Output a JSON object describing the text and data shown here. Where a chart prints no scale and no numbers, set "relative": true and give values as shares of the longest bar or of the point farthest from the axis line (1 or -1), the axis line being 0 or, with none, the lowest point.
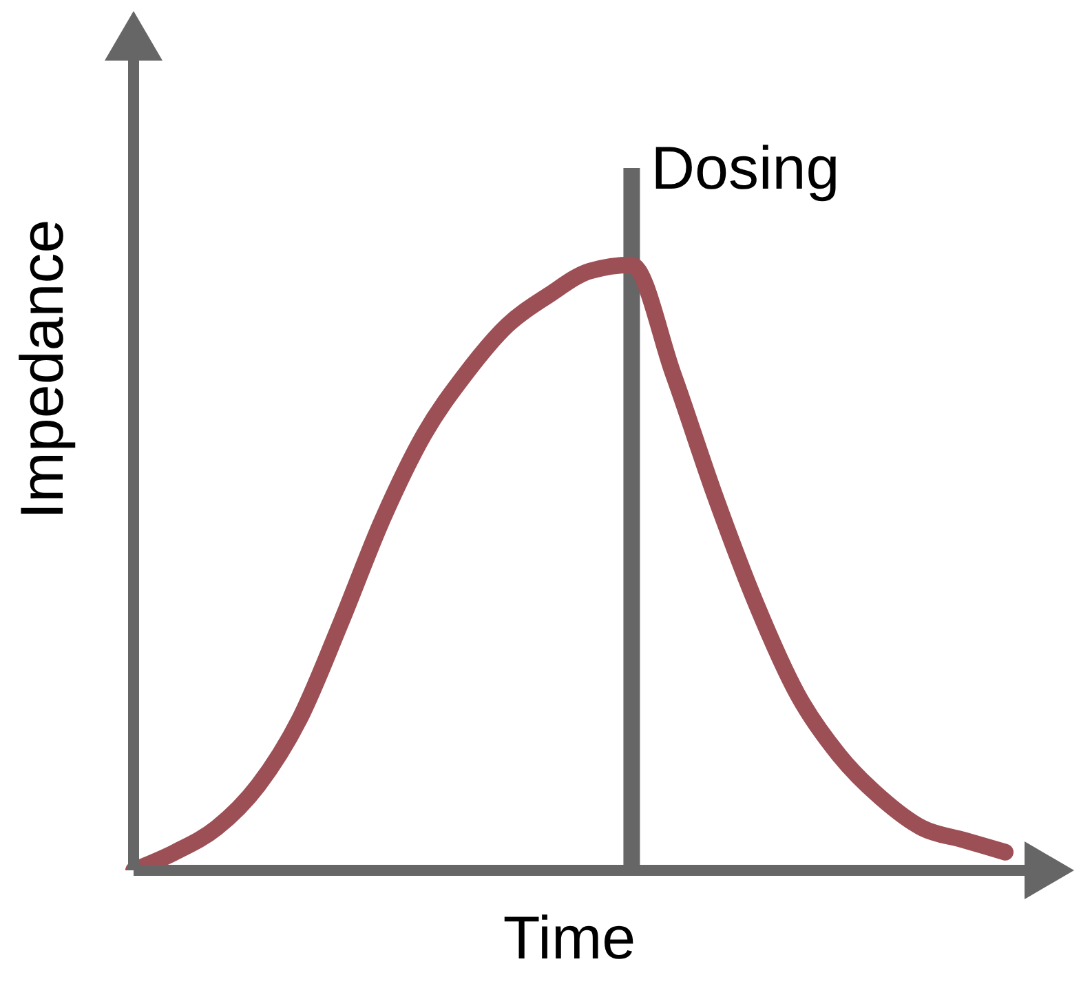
{
  "chart_data": {
    "type": "line",
    "relative": true,
    "xlabel": "Time",
    "ylabel": "Impedance",
    "marker": "none",
    "categories": [
      null,
      null,
      null,
      null,
      null,
      null,
      null,
      null,
      null,
      null,
      null,
      null,
      null,
      null,
      null,
      null,
      null,
      null,
      null,
      null,
      null,
      null
    ],
    "series": [
      {
        "color": "#9c4f55",
        "values": [
          0,
          0.03,
          0.07,
          0.14,
          0.25,
          0.41,
          0.58,
          0.72,
          0.82,
          0.9,
          0.95,
          0.99,
          1,
          0.82,
          0.62,
          0.44,
          0.29,
          0.19,
          0.12,
          0.07,
          0.05,
          0.03
        ]
      }
    ],
    "annotations": [
      "Dosing"
    ]
  }
}
